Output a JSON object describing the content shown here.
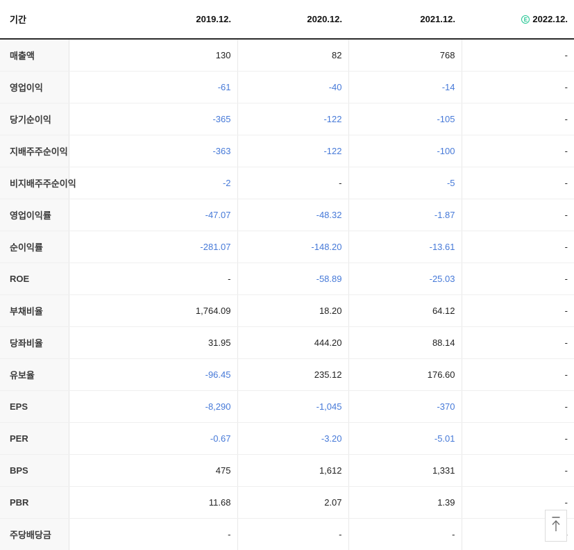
{
  "table": {
    "header": {
      "period_label": "기간",
      "columns": [
        {
          "label": "2019.12.",
          "estimate": false
        },
        {
          "label": "2020.12.",
          "estimate": false
        },
        {
          "label": "2021.12.",
          "estimate": false
        },
        {
          "label": "2022.12.",
          "estimate": true
        }
      ],
      "estimate_badge": "E"
    },
    "rows": [
      {
        "label": "매출액",
        "values": [
          "130",
          "82",
          "768",
          "-"
        ],
        "group_start": false
      },
      {
        "label": "영업이익",
        "values": [
          "-61",
          "-40",
          "-14",
          "-"
        ],
        "group_start": false
      },
      {
        "label": "당기순이익",
        "values": [
          "-365",
          "-122",
          "-105",
          "-"
        ],
        "group_start": false
      },
      {
        "label": "지배주주순이익",
        "values": [
          "-363",
          "-122",
          "-100",
          "-"
        ],
        "group_start": false
      },
      {
        "label": "비지배주주순이익",
        "values": [
          "-2",
          "-",
          "-5",
          "-"
        ],
        "group_start": false
      },
      {
        "label": "영업이익률",
        "values": [
          "-47.07",
          "-48.32",
          "-1.87",
          "-"
        ],
        "group_start": true
      },
      {
        "label": "순이익률",
        "values": [
          "-281.07",
          "-148.20",
          "-13.61",
          "-"
        ],
        "group_start": false
      },
      {
        "label": "ROE",
        "values": [
          "-",
          "-58.89",
          "-25.03",
          "-"
        ],
        "group_start": false
      },
      {
        "label": "부채비율",
        "values": [
          "1,764.09",
          "18.20",
          "64.12",
          "-"
        ],
        "group_start": true
      },
      {
        "label": "당좌비율",
        "values": [
          "31.95",
          "444.20",
          "88.14",
          "-"
        ],
        "group_start": false
      },
      {
        "label": "유보율",
        "values": [
          "-96.45",
          "235.12",
          "176.60",
          "-"
        ],
        "group_start": false
      },
      {
        "label": "EPS",
        "values": [
          "-8,290",
          "-1,045",
          "-370",
          "-"
        ],
        "group_start": true
      },
      {
        "label": "PER",
        "values": [
          "-0.67",
          "-3.20",
          "-5.01",
          "-"
        ],
        "group_start": false
      },
      {
        "label": "BPS",
        "values": [
          "475",
          "1,612",
          "1,331",
          "-"
        ],
        "group_start": false
      },
      {
        "label": "PBR",
        "values": [
          "11.68",
          "2.07",
          "1.39",
          "-"
        ],
        "group_start": false
      },
      {
        "label": "주당배당금",
        "values": [
          "-",
          "-",
          "-",
          "-"
        ],
        "group_start": true
      }
    ]
  },
  "colors": {
    "negative_value": "#4679d8",
    "default_value": "#222222",
    "estimate_green": "#22c693"
  },
  "scroll_top_button": {
    "icon_name": "arrow-up-to-top"
  }
}
